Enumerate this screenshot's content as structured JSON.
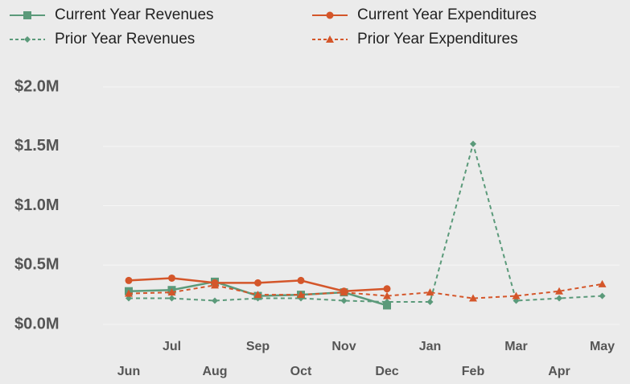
{
  "chart_data": {
    "type": "line",
    "categories": [
      "Jun",
      "Jul",
      "Aug",
      "Sep",
      "Oct",
      "Nov",
      "Dec",
      "Jan",
      "Feb",
      "Mar",
      "Apr",
      "May"
    ],
    "series": [
      {
        "name": "Current Year Revenues",
        "color": "#5b9a7a",
        "dashed": false,
        "marker": "square",
        "values": [
          0.28,
          0.29,
          0.36,
          0.24,
          0.25,
          0.27,
          0.16,
          null,
          null,
          null,
          null,
          null
        ]
      },
      {
        "name": "Current Year Expenditures",
        "color": "#d4562a",
        "dashed": false,
        "marker": "circle",
        "values": [
          0.37,
          0.39,
          0.35,
          0.35,
          0.37,
          0.28,
          0.3,
          null,
          null,
          null,
          null,
          null
        ]
      },
      {
        "name": "Prior Year Revenues",
        "color": "#5b9a7a",
        "dashed": true,
        "marker": "diamond",
        "values": [
          0.22,
          0.22,
          0.2,
          0.22,
          0.22,
          0.2,
          0.19,
          0.19,
          1.52,
          0.2,
          0.22,
          0.24
        ]
      },
      {
        "name": "Prior Year Expenditures",
        "color": "#d4562a",
        "dashed": true,
        "marker": "triangle",
        "values": [
          0.26,
          0.27,
          0.33,
          0.25,
          0.25,
          0.27,
          0.24,
          0.27,
          0.22,
          0.24,
          0.28,
          0.34
        ]
      }
    ],
    "ylim": [
      0,
      2.0
    ],
    "yticks": [
      {
        "value": 0,
        "label": "$0.0M"
      },
      {
        "value": 0.5,
        "label": "$0.5M"
      },
      {
        "value": 1.0,
        "label": "$1.0M"
      },
      {
        "value": 1.5,
        "label": "$1.5M"
      },
      {
        "value": 2.0,
        "label": "$2.0M"
      }
    ],
    "grid": true
  }
}
